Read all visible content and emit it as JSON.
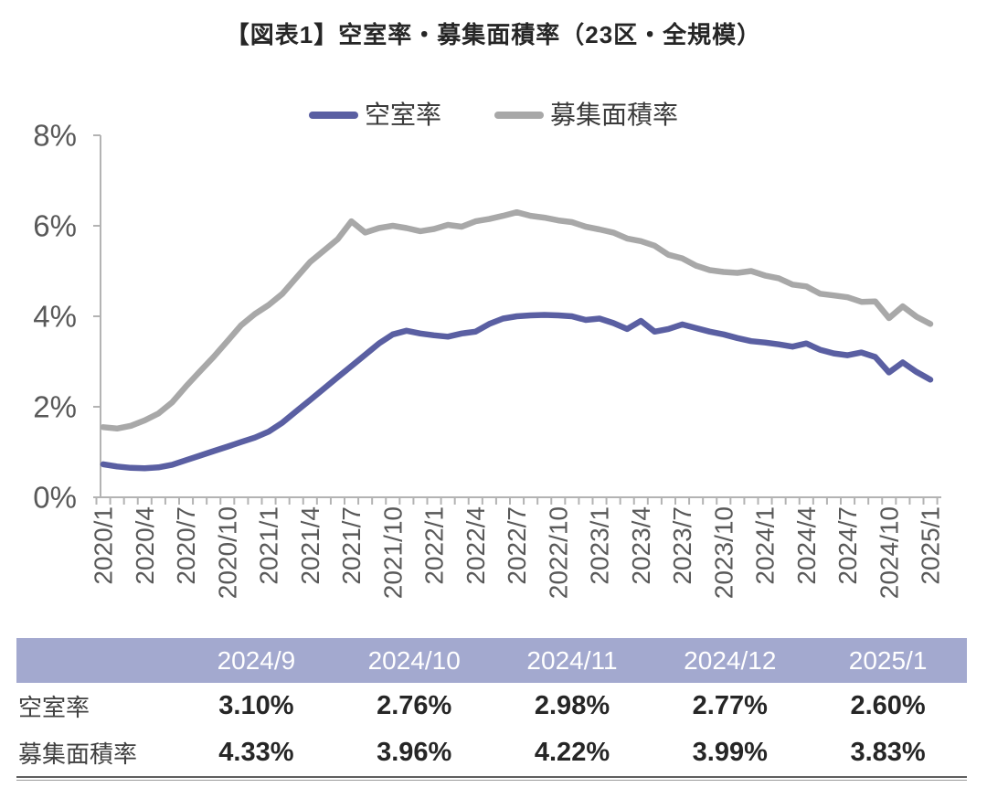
{
  "title": "【図表1】空室率・募集面積率（23区・全規模）",
  "chart_data": {
    "type": "line",
    "title": "空室率・募集面積率（23区・全規模）",
    "xlabel": "",
    "ylabel": "",
    "ylim": [
      0,
      8
    ],
    "yticks": [
      0,
      2,
      4,
      6,
      8
    ],
    "ytick_suffix": "%",
    "tick_label_every": 3,
    "grid": false,
    "legend_position": "top-center",
    "axis_color": "#b3b3b3",
    "tick_text_color": "#595959",
    "months": [
      "2020/1",
      "2020/2",
      "2020/3",
      "2020/4",
      "2020/5",
      "2020/6",
      "2020/7",
      "2020/8",
      "2020/9",
      "2020/10",
      "2020/11",
      "2020/12",
      "2021/1",
      "2021/2",
      "2021/3",
      "2021/4",
      "2021/5",
      "2021/6",
      "2021/7",
      "2021/8",
      "2021/9",
      "2021/10",
      "2021/11",
      "2021/12",
      "2022/1",
      "2022/2",
      "2022/3",
      "2022/4",
      "2022/5",
      "2022/6",
      "2022/7",
      "2022/8",
      "2022/9",
      "2022/10",
      "2022/11",
      "2022/12",
      "2023/1",
      "2023/2",
      "2023/3",
      "2023/4",
      "2023/5",
      "2023/6",
      "2023/7",
      "2023/8",
      "2023/9",
      "2023/10",
      "2023/11",
      "2023/12",
      "2024/1",
      "2024/2",
      "2024/3",
      "2024/4",
      "2024/5",
      "2024/6",
      "2024/7",
      "2024/8",
      "2024/9",
      "2024/10",
      "2024/11",
      "2024/12",
      "2025/1"
    ],
    "series": [
      {
        "name": "空室率",
        "color": "#5a5fa2",
        "values": [
          0.73,
          0.68,
          0.65,
          0.64,
          0.66,
          0.72,
          0.82,
          0.92,
          1.02,
          1.12,
          1.22,
          1.32,
          1.45,
          1.65,
          1.9,
          2.15,
          2.4,
          2.65,
          2.9,
          3.15,
          3.4,
          3.6,
          3.68,
          3.62,
          3.58,
          3.55,
          3.62,
          3.66,
          3.83,
          3.95,
          4.0,
          4.02,
          4.03,
          4.02,
          4.0,
          3.92,
          3.95,
          3.85,
          3.72,
          3.9,
          3.66,
          3.72,
          3.82,
          3.74,
          3.66,
          3.6,
          3.52,
          3.45,
          3.42,
          3.38,
          3.33,
          3.4,
          3.26,
          3.18,
          3.14,
          3.2,
          3.1,
          2.76,
          2.98,
          2.77,
          2.6
        ]
      },
      {
        "name": "募集面積率",
        "color": "#a8a8a8",
        "values": [
          1.55,
          1.52,
          1.58,
          1.7,
          1.85,
          2.1,
          2.45,
          2.78,
          3.1,
          3.45,
          3.8,
          4.05,
          4.25,
          4.5,
          4.85,
          5.2,
          5.45,
          5.7,
          6.1,
          5.85,
          5.95,
          6.0,
          5.95,
          5.88,
          5.93,
          6.02,
          5.98,
          6.1,
          6.15,
          6.22,
          6.3,
          6.22,
          6.18,
          6.12,
          6.08,
          5.98,
          5.92,
          5.85,
          5.72,
          5.66,
          5.56,
          5.36,
          5.28,
          5.12,
          5.02,
          4.98,
          4.96,
          5.0,
          4.9,
          4.84,
          4.7,
          4.66,
          4.5,
          4.46,
          4.42,
          4.32,
          4.33,
          3.96,
          4.22,
          3.99,
          3.83
        ]
      }
    ]
  },
  "table": {
    "header_bg": "#a3a9cf",
    "columns": [
      "2024/9",
      "2024/10",
      "2024/11",
      "2024/12",
      "2025/1"
    ],
    "rows": [
      {
        "label": "空室率",
        "values": [
          "3.10%",
          "2.76%",
          "2.98%",
          "2.77%",
          "2.60%"
        ]
      },
      {
        "label": "募集面積率",
        "values": [
          "4.33%",
          "3.96%",
          "4.22%",
          "3.99%",
          "3.83%"
        ]
      }
    ]
  }
}
